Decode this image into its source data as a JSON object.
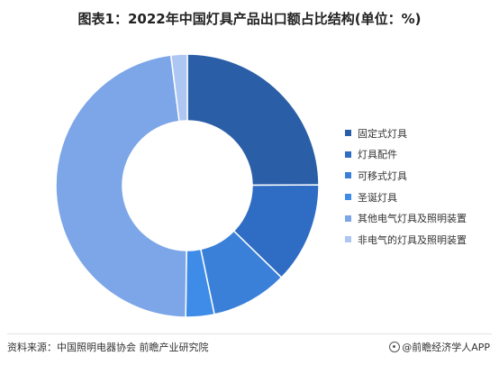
{
  "title": "图表1：2022年中国灯具产品出口额占比结构(单位：%)",
  "chart_data": {
    "type": "pie",
    "donut": true,
    "categories": [
      "固定式灯具",
      "灯具配件",
      "可移式灯具",
      "圣诞灯具",
      "其他电气灯具及照明装置",
      "非电气的灯具及照明装置"
    ],
    "values": [
      24.9,
      12.4,
      9.4,
      3.5,
      47.8,
      2.0
    ],
    "colors": [
      "#2a5fa8",
      "#2f6cc4",
      "#3a80d9",
      "#3e8ce8",
      "#7ca6e8",
      "#aec6f2"
    ],
    "legend_position": "right"
  },
  "footer": {
    "source": "资料来源：中国照明电器协会 前瞻产业研究院",
    "brand": "@前瞻经济学人APP"
  }
}
